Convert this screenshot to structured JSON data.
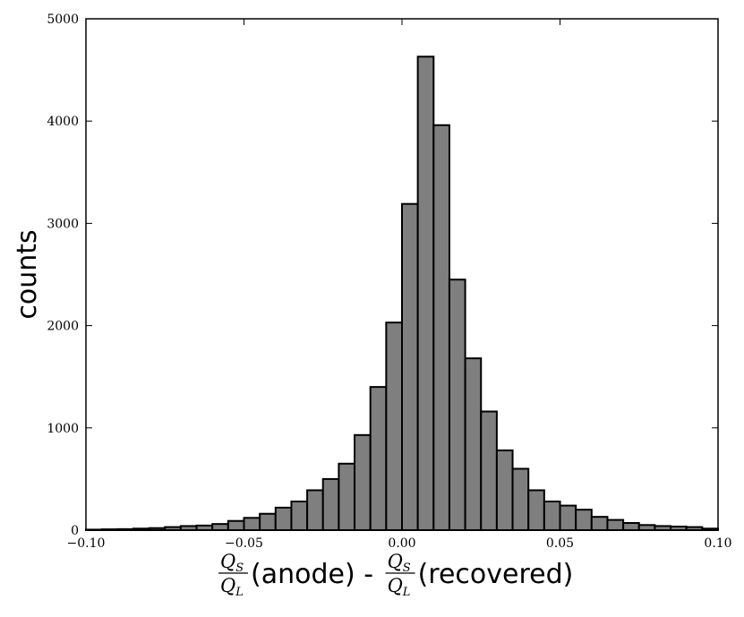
{
  "chart_data": {
    "type": "bar",
    "title": "",
    "ylabel": "counts",
    "xlabel": {
      "left_fraction": {
        "num": "Q",
        "num_sub": "S",
        "den": "Q",
        "den_sub": "L"
      },
      "left_text": "(anode) - ",
      "right_fraction": {
        "num": "Q",
        "num_sub": "S",
        "den": "Q",
        "den_sub": "L"
      },
      "right_text": "(recovered)"
    },
    "xlim": [
      -0.1,
      0.1
    ],
    "ylim": [
      0,
      5000
    ],
    "x_ticks": [
      -0.1,
      -0.05,
      0.0,
      0.05,
      0.1
    ],
    "x_tick_labels": [
      "−0.10",
      "−0.05",
      "0.00",
      "0.05",
      "0.10"
    ],
    "y_ticks": [
      0,
      1000,
      2000,
      3000,
      4000,
      5000
    ],
    "y_tick_labels": [
      "0",
      "1000",
      "2000",
      "3000",
      "4000",
      "5000"
    ],
    "bar_color": "#7f7f7f",
    "edge_color": "#000000",
    "bin_edges": [
      -0.1,
      -0.095,
      -0.09,
      -0.085,
      -0.08,
      -0.075,
      -0.07,
      -0.065,
      -0.06,
      -0.055,
      -0.05,
      -0.045,
      -0.04,
      -0.035,
      -0.03,
      -0.025,
      -0.02,
      -0.015,
      -0.01,
      -0.005,
      0.0,
      0.005,
      0.01,
      0.015,
      0.02,
      0.025,
      0.03,
      0.035,
      0.04,
      0.045,
      0.05,
      0.055,
      0.06,
      0.065,
      0.07,
      0.075,
      0.08,
      0.085,
      0.09,
      0.095,
      0.1
    ],
    "counts": [
      5,
      8,
      10,
      15,
      20,
      30,
      40,
      45,
      60,
      90,
      120,
      160,
      220,
      280,
      390,
      500,
      650,
      930,
      1400,
      2030,
      3190,
      4630,
      3960,
      2450,
      1680,
      1160,
      780,
      600,
      390,
      280,
      240,
      200,
      130,
      100,
      70,
      50,
      40,
      35,
      30,
      15
    ]
  }
}
